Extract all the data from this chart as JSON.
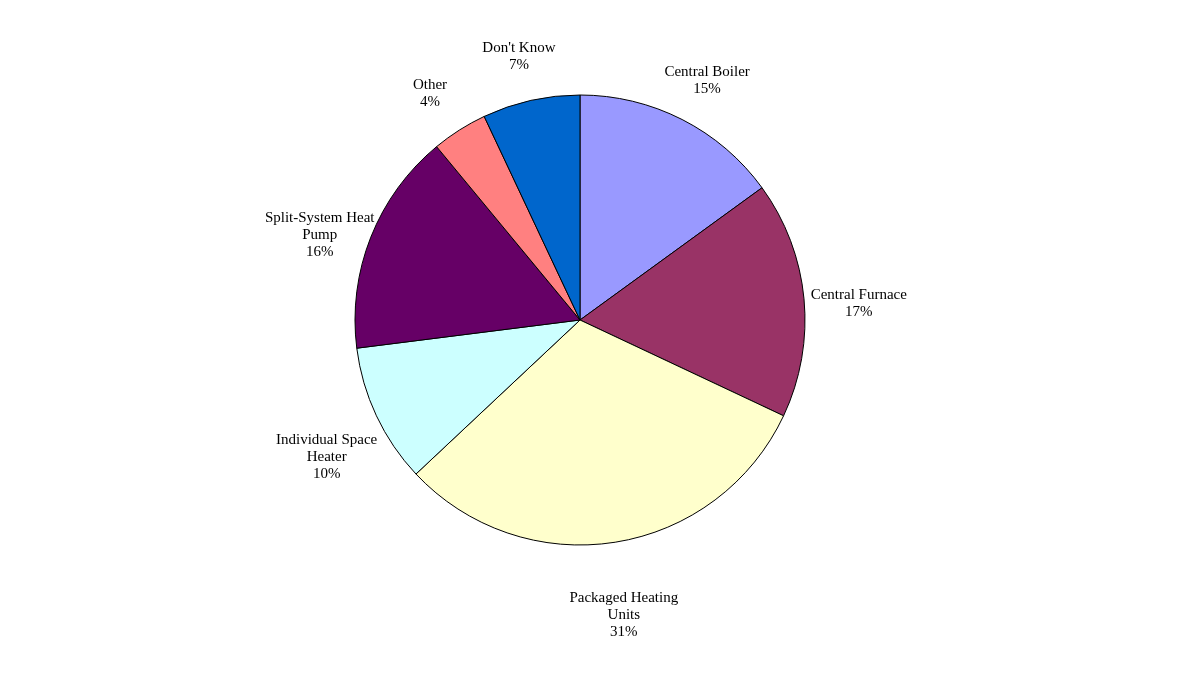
{
  "chart_data": {
    "type": "pie",
    "categories": [
      "Central Boiler",
      "Central Furnace",
      "Packaged Heating Units",
      "Individual Space Heater",
      "Split-System Heat Pump",
      "Other",
      "Don't Know"
    ],
    "values": [
      15,
      17,
      31,
      10,
      16,
      4,
      7
    ],
    "value_labels": [
      "15%",
      "17%",
      "31%",
      "10%",
      "16%",
      "4%",
      "7%"
    ],
    "colors": [
      "#9999ff",
      "#993366",
      "#ffffcc",
      "#ccffff",
      "#660066",
      "#ff8080",
      "#0066cc"
    ],
    "legend": false
  }
}
